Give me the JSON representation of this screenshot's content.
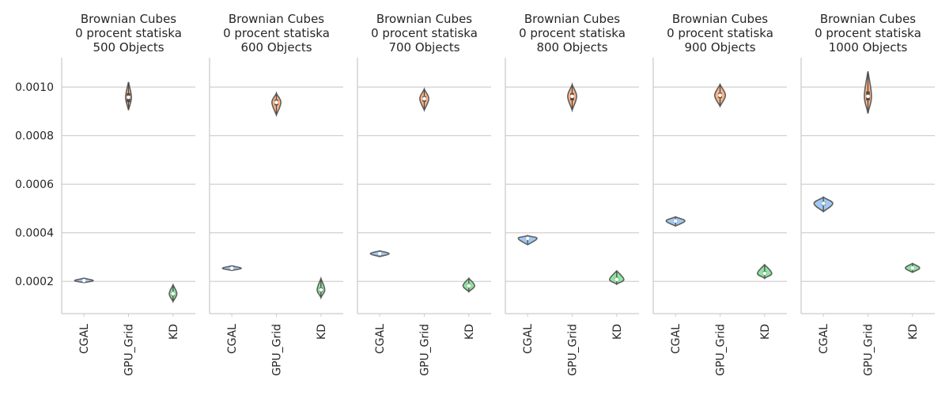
{
  "chart_data": {
    "type": "violin",
    "ylim": [
      6.72e-05,
      0.0011211
    ],
    "y_ticks": [
      0.0002,
      0.0004,
      0.0006,
      0.0008,
      0.001
    ],
    "y_tick_labels": [
      "0.0002",
      "0.0004",
      "0.0006",
      "0.0008",
      "0.0010"
    ],
    "grid": "horizontal",
    "categories": [
      "CGAL",
      "GPU_Grid",
      "KD"
    ],
    "category_colors": [
      "#a1c9f4",
      "#ffb482",
      "#8de5a1"
    ],
    "panels": [
      {
        "title_lines": [
          "Brownian Cubes",
          "0 procent statiska",
          "500 Objects"
        ],
        "violins": [
          {
            "category": "CGAL",
            "median": 0.000203,
            "min": 0.000195,
            "max": 0.000213,
            "q1": 0.000201,
            "q3": 0.000206,
            "width": 0.42
          },
          {
            "category": "GPU_Grid",
            "median": 0.000958,
            "min": 0.000905,
            "max": 0.001021,
            "q1": 0.000938,
            "q3": 0.000975,
            "width": 0.13
          },
          {
            "category": "KD",
            "median": 0.000149,
            "min": 0.000117,
            "max": 0.000186,
            "q1": 0.000141,
            "q3": 0.000155,
            "width": 0.17
          }
        ]
      },
      {
        "title_lines": [
          "Brownian Cubes",
          "0 procent statiska",
          "600 Objects"
        ],
        "violins": [
          {
            "category": "CGAL",
            "median": 0.000254,
            "min": 0.000245,
            "max": 0.000264,
            "q1": 0.00025,
            "q3": 0.000258,
            "width": 0.42
          },
          {
            "category": "GPU_Grid",
            "median": 0.000937,
            "min": 0.000885,
            "max": 0.000975,
            "q1": 0.000925,
            "q3": 0.000948,
            "width": 0.2
          },
          {
            "category": "KD",
            "median": 0.000165,
            "min": 0.000133,
            "max": 0.000212,
            "q1": 0.000157,
            "q3": 0.000174,
            "width": 0.17
          }
        ]
      },
      {
        "title_lines": [
          "Brownian Cubes",
          "0 procent statiska",
          "700 Objects"
        ],
        "violins": [
          {
            "category": "CGAL",
            "median": 0.000314,
            "min": 0.000302,
            "max": 0.000326,
            "q1": 0.000309,
            "q3": 0.000319,
            "width": 0.42
          },
          {
            "category": "GPU_Grid",
            "median": 0.000952,
            "min": 0.000905,
            "max": 0.000992,
            "q1": 0.00094,
            "q3": 0.000962,
            "width": 0.2
          },
          {
            "category": "KD",
            "median": 0.000182,
            "min": 0.000157,
            "max": 0.000213,
            "q1": 0.000176,
            "q3": 0.000189,
            "width": 0.26
          }
        ]
      },
      {
        "title_lines": [
          "Brownian Cubes",
          "0 procent statiska",
          "800 Objects"
        ],
        "violins": [
          {
            "category": "CGAL",
            "median": 0.000377,
            "min": 0.000351,
            "max": 0.000389,
            "q1": 0.000371,
            "q3": 0.000383,
            "width": 0.42
          },
          {
            "category": "GPU_Grid",
            "median": 0.000962,
            "min": 0.000905,
            "max": 0.001011,
            "q1": 0.000945,
            "q3": 0.000975,
            "width": 0.2
          },
          {
            "category": "KD",
            "median": 0.000208,
            "min": 0.000188,
            "max": 0.000243,
            "q1": 0.000202,
            "q3": 0.000215,
            "width": 0.32
          }
        ]
      },
      {
        "title_lines": [
          "Brownian Cubes",
          "0 procent statiska",
          "900 Objects"
        ],
        "violins": [
          {
            "category": "CGAL",
            "median": 0.000449,
            "min": 0.000428,
            "max": 0.000466,
            "q1": 0.000443,
            "q3": 0.000455,
            "width": 0.42
          },
          {
            "category": "GPU_Grid",
            "median": 0.000966,
            "min": 0.000921,
            "max": 0.001011,
            "q1": 0.000955,
            "q3": 0.000976,
            "width": 0.24
          },
          {
            "category": "KD",
            "median": 0.000233,
            "min": 0.000212,
            "max": 0.000269,
            "q1": 0.000226,
            "q3": 0.000241,
            "width": 0.32
          }
        ]
      },
      {
        "title_lines": [
          "Brownian Cubes",
          "0 procent statiska",
          "1000 Objects"
        ],
        "violins": [
          {
            "category": "CGAL",
            "median": 0.000521,
            "min": 0.000487,
            "max": 0.000547,
            "q1": 0.000513,
            "q3": 0.000528,
            "width": 0.42
          },
          {
            "category": "GPU_Grid",
            "median": 0.000962,
            "min": 0.000891,
            "max": 0.001065,
            "q1": 0.000945,
            "q3": 0.000982,
            "width": 0.16
          },
          {
            "category": "KD",
            "median": 0.000255,
            "min": 0.000237,
            "max": 0.000274,
            "q1": 0.000249,
            "q3": 0.000261,
            "width": 0.32
          }
        ]
      }
    ]
  }
}
